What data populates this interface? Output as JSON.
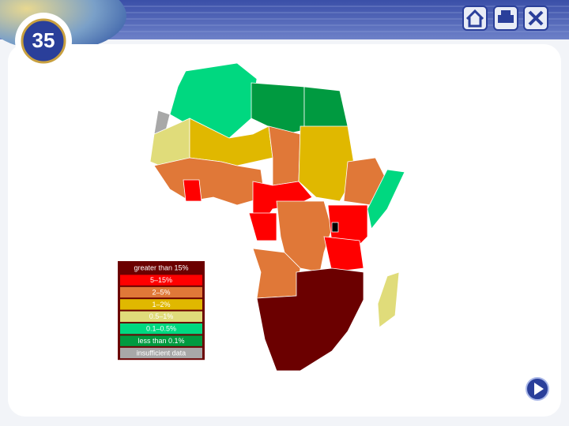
{
  "slide_number": "35",
  "legend": {
    "items": [
      {
        "label": "greater than 15%",
        "color": "#6b0000"
      },
      {
        "label": "5–15%",
        "color": "#ff0000"
      },
      {
        "label": "2–5%",
        "color": "#e07838"
      },
      {
        "label": "1–2%",
        "color": "#e0b800"
      },
      {
        "label": "0.5–1%",
        "color": "#e0dc7a"
      },
      {
        "label": "0.1–0.5%",
        "color": "#00d880"
      },
      {
        "label": "less than 0.1%",
        "color": "#009a40"
      },
      {
        "label": "insufficient data",
        "color": "#a8a8a8"
      }
    ]
  }
}
